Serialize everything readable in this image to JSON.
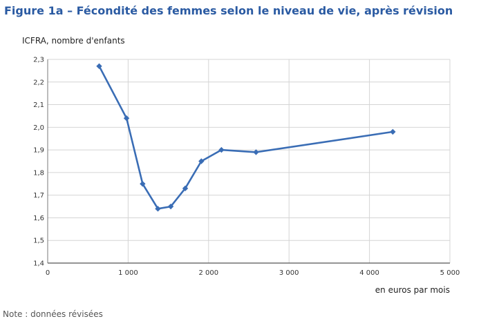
{
  "figure": {
    "title": "Figure 1a – Fécondité des femmes selon le niveau de vie, après révision",
    "note": "Note : données révisées"
  },
  "chart_data": {
    "type": "line",
    "title": "Figure 1a – Fécondité des femmes selon le niveau de vie, après révision",
    "ylabel": "ICFRA, nombre d'enfants",
    "xlabel": "en euros par mois",
    "xlim": [
      0,
      5000
    ],
    "ylim": [
      1.4,
      2.3
    ],
    "x_ticks": [
      0,
      1000,
      2000,
      3000,
      4000,
      5000
    ],
    "x_tick_labels": [
      "0",
      "1 000",
      "2 000",
      "3 000",
      "4 000",
      "5 000"
    ],
    "y_ticks": [
      1.4,
      1.5,
      1.6,
      1.7,
      1.8,
      1.9,
      2.0,
      2.1,
      2.2,
      2.3
    ],
    "y_tick_labels": [
      "1,4",
      "1,5",
      "1,6",
      "1,7",
      "1,8",
      "1,9",
      "2,0",
      "2,1",
      "2,2",
      "2,3"
    ],
    "grid": true,
    "marker": "diamond",
    "series": [
      {
        "color": "#3a6db5",
        "x": [
          640,
          980,
          1180,
          1370,
          1530,
          1710,
          1910,
          2160,
          2590,
          4290
        ],
        "y": [
          2.27,
          2.04,
          1.75,
          1.64,
          1.65,
          1.73,
          1.85,
          1.9,
          1.89,
          1.98
        ]
      }
    ]
  }
}
